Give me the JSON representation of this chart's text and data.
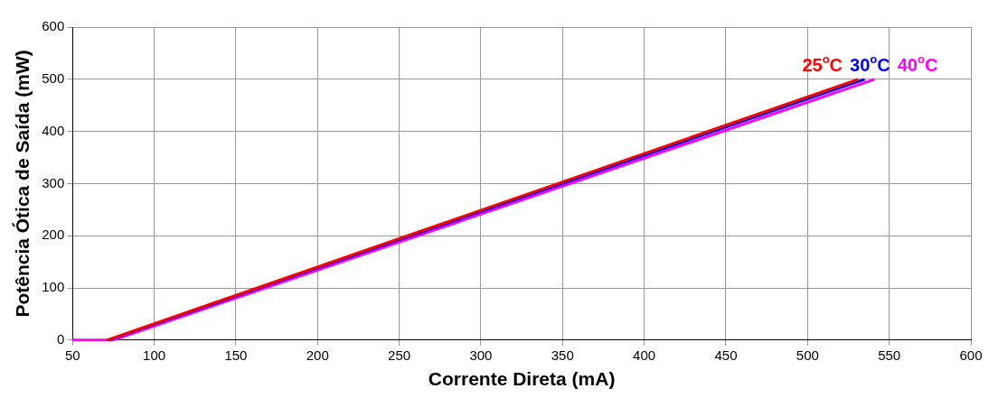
{
  "chart_data": {
    "type": "line",
    "xlabel": "Corrente Direta (mA)",
    "ylabel": "Potência Ótica de Saída (mW)",
    "xlim": [
      50,
      600
    ],
    "xticks": [
      50,
      100,
      150,
      200,
      250,
      300,
      350,
      400,
      450,
      500,
      550,
      600
    ],
    "ylim": [
      0,
      600
    ],
    "yticks": [
      0,
      100,
      200,
      300,
      400,
      500,
      600
    ],
    "grid": true,
    "legend": false,
    "marker": "none",
    "line_style": "solid",
    "series": [
      {
        "name": "25$^{o}$C",
        "color": "#ff0000",
        "x": [
          71,
          531
        ],
        "values": [
          0,
          500
        ]
      },
      {
        "name": "30$^{o}$C",
        "color": "#0000ff",
        "x": [
          72,
          535
        ],
        "values": [
          0,
          500
        ]
      },
      {
        "name": "40$^{o}$C",
        "color": "#ff00ff",
        "x": [
          50,
          75,
          541
        ],
        "values": [
          0,
          0,
          500
        ]
      }
    ]
  }
}
